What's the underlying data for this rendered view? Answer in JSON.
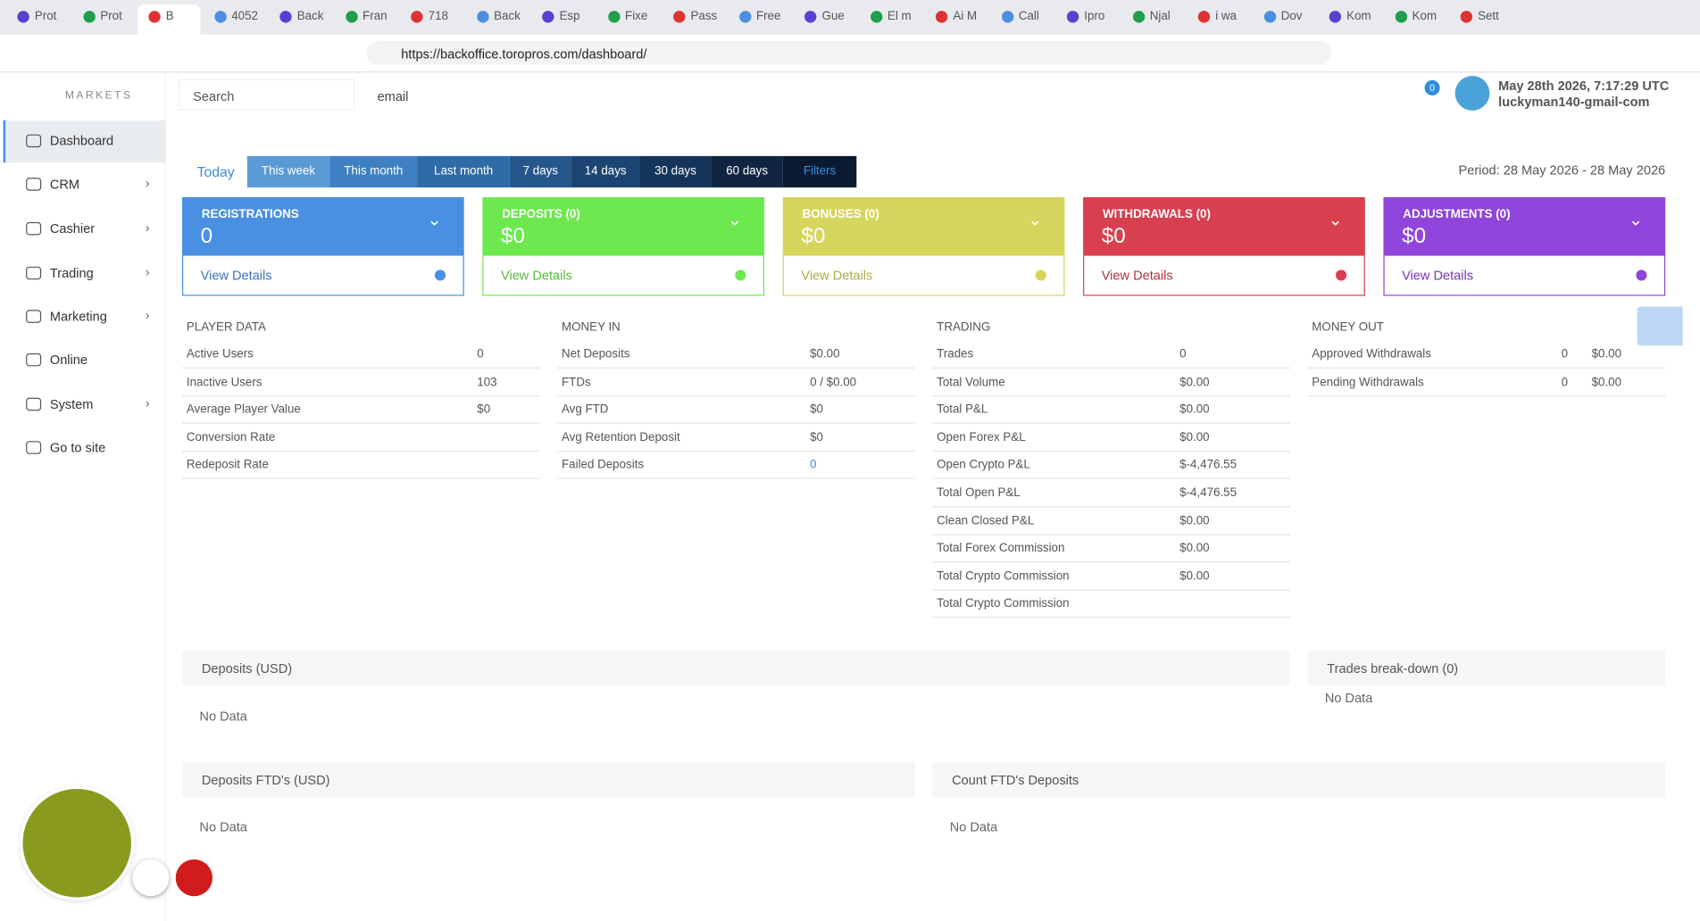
{
  "browser": {
    "tabs": [
      "Prot",
      "Prot",
      "B",
      "4052",
      "Back",
      "Fran",
      "718",
      "Back",
      "Esp",
      "Fixe",
      "Pass",
      "Free",
      "Gue",
      "El m",
      "Ai M",
      "Call",
      "Ipro",
      "Njal",
      "i wa",
      "Dov",
      "Kom",
      "Kom",
      "Sett"
    ],
    "url": "https://backoffice.toropros.com/dashboard/"
  },
  "header": {
    "logo": "MARKETS",
    "search": "Search",
    "select": "email",
    "notifications": "0",
    "date": "May 28th 2026, 7:17:29 UTC",
    "user": "luckyman140-gmail-com"
  },
  "sidebar": [
    "Dashboard",
    "CRM",
    "Cashier",
    "Trading",
    "Marketing",
    "Online",
    "System",
    "Go to site"
  ],
  "filters": [
    "Today",
    "This week",
    "This month",
    "Last month",
    "7 days",
    "14 days",
    "30 days",
    "60 days",
    "Filters"
  ],
  "period": "Period: 28 May 2026 - 28 May 2026",
  "cards": [
    {
      "title": "REGISTRATIONS",
      "value": "0",
      "link": "View Details",
      "color": "#4a90e2"
    },
    {
      "title": "DEPOSITS (0)",
      "value": "$0",
      "link": "View Details",
      "color": "#6de84f"
    },
    {
      "title": "BONUSES (0)",
      "value": "$0",
      "link": "View Details",
      "color": "#d6d65c"
    },
    {
      "title": "WITHDRAWALS (0)",
      "value": "$0",
      "link": "View Details",
      "color": "#d8404f"
    },
    {
      "title": "ADJUSTMENTS (0)",
      "value": "$0",
      "link": "View Details",
      "color": "#8f45dc"
    }
  ],
  "sections": [
    {
      "title": "PLAYER DATA",
      "rows": [
        [
          "Active Users",
          "0"
        ],
        [
          "Inactive Users",
          "103"
        ],
        [
          "Average Player Value",
          "$0"
        ],
        [
          "Conversion Rate"
        ],
        [
          "Redeposit Rate"
        ]
      ]
    },
    {
      "title": "MONEY IN",
      "rows": [
        [
          "Net Deposits",
          "$0.00"
        ],
        [
          "FTDs",
          "0 / $0.00"
        ],
        [
          "Avg FTD",
          "$0"
        ],
        [
          "Avg Retention Deposit",
          "$0"
        ],
        [
          "Failed Deposits",
          "0"
        ]
      ]
    },
    {
      "title": "TRADING",
      "rows": [
        [
          "Trades",
          "0"
        ],
        [
          "Total Volume",
          "$0.00"
        ],
        [
          "Total P&L",
          "$0.00"
        ],
        [
          "Open Forex P&L",
          "$0.00"
        ],
        [
          "Open Crypto P&L",
          "$-4,476.55"
        ],
        [
          "Total Open P&L",
          "$-4,476.55"
        ],
        [
          "Clean Closed P&L",
          "$0.00"
        ],
        [
          "Total Forex Commission",
          "$0.00"
        ],
        [
          "Total Crypto Commission",
          "$0.00"
        ],
        [
          "Total Crypto Commission"
        ]
      ]
    },
    {
      "title": "MONEY OUT",
      "rows": [
        [
          "Approved Withdrawals",
          "0",
          "$0.00"
        ],
        [
          "Pending Withdrawals",
          "0",
          "$0.00"
        ]
      ]
    }
  ],
  "panels": [
    {
      "title": "Deposits (USD)",
      "body": "No Data"
    },
    {
      "title": "Trades break-down (0)",
      "body": "No Data"
    },
    {
      "title": "Deposits FTD's (USD)",
      "body": "No Data"
    },
    {
      "title": "Count FTD's Deposits",
      "body": "No Data"
    }
  ]
}
